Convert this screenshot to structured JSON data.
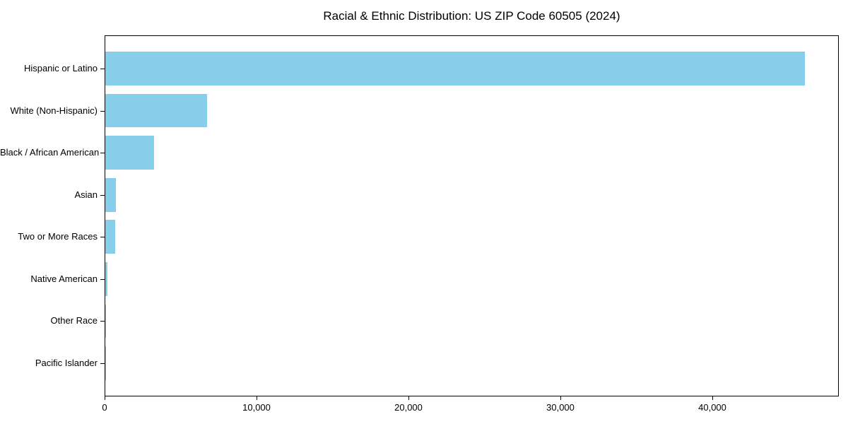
{
  "chart_data": {
    "type": "bar",
    "orientation": "horizontal",
    "title": "Racial & Ethnic Distribution: US ZIP Code 60505 (2024)",
    "categories": [
      "Hispanic or Latino",
      "White (Non-Hispanic)",
      "Black / African American",
      "Asian",
      "Two or More Races",
      "Native American",
      "Other Race",
      "Pacific Islander"
    ],
    "values": [
      46000,
      6700,
      3200,
      700,
      650,
      120,
      60,
      20
    ],
    "xlabel": "",
    "ylabel": "",
    "xlim": [
      0,
      48300
    ],
    "x_ticks": [
      0,
      10000,
      20000,
      30000,
      40000
    ],
    "x_tick_labels": [
      "0",
      "10,000",
      "20,000",
      "30,000",
      "40,000"
    ],
    "bar_color": "#87CEEB",
    "background_color": "#FFFFFF",
    "spine_color": "#000000",
    "text_color": "#000000",
    "grid": false,
    "legend_position": "none"
  }
}
